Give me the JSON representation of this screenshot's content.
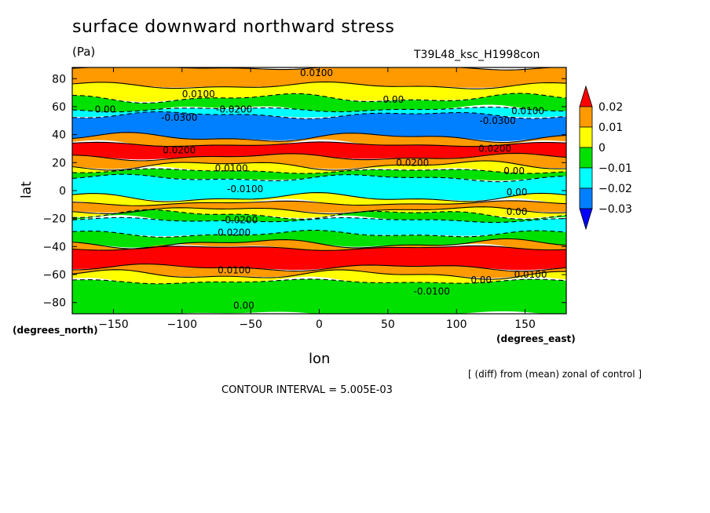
{
  "header": {
    "title": "surface downward northward stress",
    "units": "(Pa)",
    "run_id": "T39L48_ksc_H1998con"
  },
  "footer": {
    "note": "[ (diff) from (mean) zonal of control ]",
    "contour_interval": "CONTOUR INTERVAL = 5.005E-03"
  },
  "chart_data": {
    "type": "heatmap",
    "title": "surface downward northward stress",
    "xlabel": "lon",
    "ylabel": "lat",
    "x_units": "(degrees_east)",
    "y_units": "(degrees_north)",
    "xlim": [
      -180,
      180
    ],
    "ylim": [
      -88,
      88
    ],
    "x_ticks": [
      -150,
      -100,
      -50,
      0,
      50,
      100,
      150
    ],
    "x_tick_labels": [
      "−150",
      "−100",
      "−50",
      "0",
      "50",
      "100",
      "150"
    ],
    "y_ticks": [
      80,
      60,
      40,
      20,
      0,
      -20,
      -40,
      -60,
      -80
    ],
    "y_tick_labels": [
      "80",
      "60",
      "40",
      "20",
      "0",
      "−20",
      "−40",
      "−60",
      "−80"
    ],
    "colorbar": {
      "labels": [
        "0.02",
        "0.01",
        "0",
        "−0.01",
        "−0.02",
        "−0.03"
      ],
      "colors": [
        "#ff0000",
        "#ff9a00",
        "#ffff00",
        "#00e100",
        "#00ffff",
        "#0080ff",
        "#0000ff"
      ]
    },
    "zonal_bands": [
      {
        "lat_range": [
          75,
          88
        ],
        "value": 0.01
      },
      {
        "lat_range": [
          66,
          75
        ],
        "value": 0.0
      },
      {
        "lat_range": [
          58,
          66
        ],
        "value": -0.01
      },
      {
        "lat_range": [
          54,
          58
        ],
        "value": -0.02
      },
      {
        "lat_range": [
          38,
          54
        ],
        "value": -0.03
      },
      {
        "lat_range": [
          33,
          38
        ],
        "value": 0.01
      },
      {
        "lat_range": [
          24,
          33
        ],
        "value": 0.02
      },
      {
        "lat_range": [
          18,
          24
        ],
        "value": 0.01
      },
      {
        "lat_range": [
          14,
          18
        ],
        "value": 0.0
      },
      {
        "lat_range": [
          9,
          14
        ],
        "value": -0.01
      },
      {
        "lat_range": [
          -5,
          9
        ],
        "value": -0.02
      },
      {
        "lat_range": [
          -9,
          -5
        ],
        "value": 0.0
      },
      {
        "lat_range": [
          -14,
          -9
        ],
        "value": 0.01
      },
      {
        "lat_range": [
          -17,
          -14
        ],
        "value": 0.0
      },
      {
        "lat_range": [
          -21,
          -17
        ],
        "value": -0.01
      },
      {
        "lat_range": [
          -31,
          -21
        ],
        "value": -0.02
      },
      {
        "lat_range": [
          -38,
          -31
        ],
        "value": -0.01
      },
      {
        "lat_range": [
          -41,
          -38
        ],
        "value": 0.01
      },
      {
        "lat_range": [
          -55,
          -41
        ],
        "value": 0.02
      },
      {
        "lat_range": [
          -60,
          -55
        ],
        "value": 0.01
      },
      {
        "lat_range": [
          -65,
          -60
        ],
        "value": 0.0
      },
      {
        "lat_range": [
          -88,
          -65
        ],
        "value": -0.01
      }
    ],
    "contour_labels": [
      {
        "text": "0.0100",
        "lon": -2,
        "lat": 84
      },
      {
        "text": "0.0100",
        "lon": -88,
        "lat": 69
      },
      {
        "text": "0.0100",
        "lon": 152,
        "lat": 57
      },
      {
        "text": "0.00",
        "lon": -156,
        "lat": 58
      },
      {
        "text": "0.00",
        "lon": 54,
        "lat": 65
      },
      {
        "text": "-0.0200",
        "lon": -62,
        "lat": 58
      },
      {
        "text": "-0.0300",
        "lon": -102,
        "lat": 52
      },
      {
        "text": "-0.0300",
        "lon": 130,
        "lat": 50
      },
      {
        "text": "0.0200",
        "lon": -102,
        "lat": 29
      },
      {
        "text": "0.0200",
        "lon": 68,
        "lat": 20
      },
      {
        "text": "0.0200",
        "lon": 128,
        "lat": 30
      },
      {
        "text": "0.0100",
        "lon": -64,
        "lat": 16
      },
      {
        "text": "0.00",
        "lon": 142,
        "lat": 14
      },
      {
        "text": "-0.0100",
        "lon": -54,
        "lat": 1
      },
      {
        "text": "0.00",
        "lon": 144,
        "lat": -1
      },
      {
        "text": "0.00",
        "lon": 144,
        "lat": -15
      },
      {
        "text": "-0.0200",
        "lon": -58,
        "lat": -21
      },
      {
        "text": "0.0200",
        "lon": -62,
        "lat": -30
      },
      {
        "text": "0.0100",
        "lon": -62,
        "lat": -57
      },
      {
        "text": "0.00",
        "lon": 118,
        "lat": -64
      },
      {
        "text": "-0.0100",
        "lon": 82,
        "lat": -72
      },
      {
        "text": "0.0100",
        "lon": 154,
        "lat": -60
      },
      {
        "text": "0.00",
        "lon": -55,
        "lat": -82
      }
    ]
  }
}
